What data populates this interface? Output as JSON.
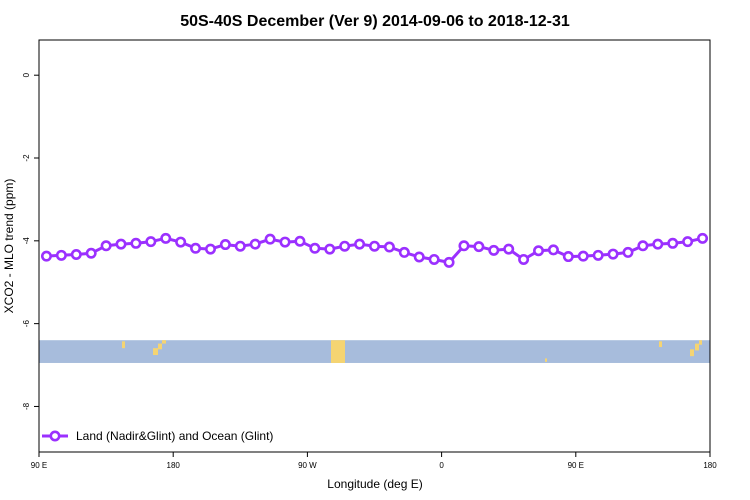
{
  "chart_data": {
    "type": "line",
    "title": "50S-40S December (Ver 9)   2014-09-06 to 2018-12-31",
    "xlabel": "Longitude (deg E)",
    "ylabel": "XCO2 - MLO trend (ppm)",
    "x_tick_labels": [
      "90 E",
      "180",
      "90 W",
      "0",
      "90 E",
      "180"
    ],
    "xlim": [
      90,
      450
    ],
    "ylim": [
      -9.1,
      0.85
    ],
    "y_ticks": [
      0,
      -2,
      -4,
      -6,
      -8
    ],
    "grid": false,
    "legend_position": "bottom-left",
    "series": [
      {
        "name": "Land (Nadir&Glint) and Ocean (Glint)",
        "color": "#9B30FF",
        "x": [
          94,
          102,
          110,
          118,
          126,
          134,
          142,
          150,
          158,
          166,
          174,
          182,
          190,
          198,
          206,
          214,
          222,
          230,
          238,
          246,
          254,
          262,
          270,
          278,
          286,
          294,
          302,
          310,
          318,
          326,
          334,
          342,
          350,
          358,
          366,
          374,
          382,
          390,
          398,
          406,
          414,
          422,
          430,
          438,
          446
        ],
        "y": [
          -4.37,
          -4.35,
          -4.33,
          -4.3,
          -4.12,
          -4.08,
          -4.06,
          -4.02,
          -3.94,
          -4.03,
          -4.18,
          -4.2,
          -4.09,
          -4.13,
          -4.08,
          -3.96,
          -4.03,
          -4.01,
          -4.18,
          -4.2,
          -4.13,
          -4.08,
          -4.13,
          -4.15,
          -4.28,
          -4.39,
          -4.45,
          -4.52,
          -4.12,
          -4.14,
          -4.23,
          -4.2,
          -4.45,
          -4.24,
          -4.22,
          -4.38,
          -4.37,
          -4.35,
          -4.32,
          -4.28,
          -4.12,
          -4.08,
          -4.06,
          -4.02,
          -3.94
        ]
      }
    ],
    "colors": {
      "ocean_band": "#A7BCDC",
      "land_band": "#F5D472",
      "line": "#9B30FF"
    }
  }
}
